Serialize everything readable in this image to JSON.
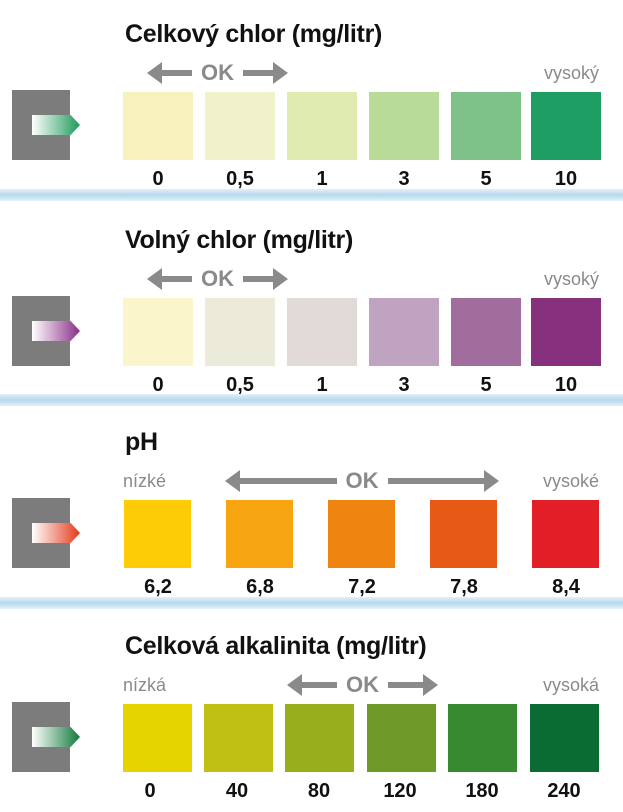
{
  "sections": [
    {
      "title": "Celkový chlor (mg/litr)",
      "ok_label": "OK",
      "low_label": "",
      "high_label": "vysoký",
      "arrow_color": "#1e9a5a",
      "swatches": [
        {
          "value": "0",
          "color": "#f8f3bd"
        },
        {
          "value": "0,5",
          "color": "#f0f2cc"
        },
        {
          "value": "1",
          "color": "#e0ebb0"
        },
        {
          "value": "3",
          "color": "#b8db98"
        },
        {
          "value": "5",
          "color": "#7ec289"
        },
        {
          "value": "10",
          "color": "#1f9e63"
        }
      ]
    },
    {
      "title": "Volný chlor (mg/litr)",
      "ok_label": "OK",
      "low_label": "",
      "high_label": "vysoký",
      "arrow_color": "#8a2f88",
      "swatches": [
        {
          "value": "0",
          "color": "#fbf5cc"
        },
        {
          "value": "0,5",
          "color": "#ecead8"
        },
        {
          "value": "1",
          "color": "#e1dad7"
        },
        {
          "value": "3",
          "color": "#c0a3c0"
        },
        {
          "value": "5",
          "color": "#a16d9c"
        },
        {
          "value": "10",
          "color": "#87307d"
        }
      ]
    },
    {
      "title": "pH",
      "ok_label": "OK",
      "low_label": "nízké",
      "high_label": "vysoké",
      "arrow_color": "#e23a1a",
      "swatches": [
        {
          "value": "6,2",
          "color": "#fecb07"
        },
        {
          "value": "6,8",
          "color": "#f7a612"
        },
        {
          "value": "7,2",
          "color": "#ef8410"
        },
        {
          "value": "7,8",
          "color": "#e65a16"
        },
        {
          "value": "8,4",
          "color": "#e21e26"
        }
      ]
    },
    {
      "title": "Celková alkalinita (mg/litr)",
      "ok_label": "OK",
      "low_label": "nízká",
      "high_label": "vysoká",
      "arrow_color": "#127a3c",
      "swatches": [
        {
          "value": "0",
          "color": "#e5d400"
        },
        {
          "value": "40",
          "color": "#bfc013"
        },
        {
          "value": "80",
          "color": "#98ae1c"
        },
        {
          "value": "120",
          "color": "#6d9a28"
        },
        {
          "value": "180",
          "color": "#388a31"
        },
        {
          "value": "240",
          "color": "#0a6b33"
        }
      ]
    }
  ]
}
